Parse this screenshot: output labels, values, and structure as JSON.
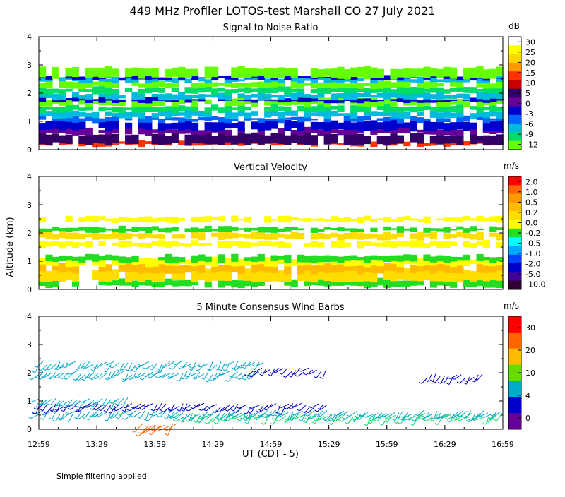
{
  "figure": {
    "title": "449 MHz Profiler LOTOS-test Marshall CO 27 July 2021",
    "ylabel": "Altitude (km)",
    "xlabel": "UT  (CDT - 5)",
    "footnote": "Simple filtering applied",
    "xticks": [
      "12:59",
      "13:29",
      "13:59",
      "14:29",
      "14:59",
      "15:29",
      "15:59",
      "16:29",
      "16:59"
    ]
  },
  "chart_data": [
    {
      "type": "heatmap",
      "title": "Signal to Noise Ratio",
      "unit": "dB",
      "xlim": [
        "12:59",
        "16:59"
      ],
      "ylim": [
        0,
        4
      ],
      "yticks": [
        "0",
        "1",
        "2",
        "3",
        "4"
      ],
      "colorbar": {
        "labels": [
          "30",
          "25",
          "20",
          "15",
          "10",
          "5",
          "0",
          "-3",
          "-6",
          "-9",
          "-12"
        ],
        "colors": [
          "#ffffff",
          "#ffff00",
          "#ffd700",
          "#ff9900",
          "#ff3300",
          "#c80000",
          "#330066",
          "#660099",
          "#0000cc",
          "#0066ff",
          "#00bbdd",
          "#00dd66",
          "#66ff00"
        ]
      },
      "bands": [
        {
          "y0": 0.15,
          "y1": 0.3,
          "color": "#ff3300"
        },
        {
          "y0": 0.2,
          "y1": 0.55,
          "color": "#330066"
        },
        {
          "y0": 0.55,
          "y1": 0.75,
          "color": "#660099"
        },
        {
          "y0": 0.7,
          "y1": 1.0,
          "color": "#0000cc"
        },
        {
          "y0": 1.0,
          "y1": 1.15,
          "color": "#0066ff"
        },
        {
          "y0": 1.15,
          "y1": 1.35,
          "color": "#00bbdd"
        },
        {
          "y0": 1.35,
          "y1": 1.55,
          "color": "#00dd66"
        },
        {
          "y0": 1.55,
          "y1": 1.8,
          "color": "#66ff00"
        },
        {
          "y0": 1.7,
          "y1": 1.8,
          "color": "#0000cc"
        },
        {
          "y0": 1.8,
          "y1": 2.0,
          "color": "#00bbdd"
        },
        {
          "y0": 2.0,
          "y1": 2.2,
          "color": "#00dd66"
        },
        {
          "y0": 2.2,
          "y1": 2.4,
          "color": "#66ff00"
        },
        {
          "y0": 2.4,
          "y1": 2.55,
          "color": "#00bbdd"
        },
        {
          "y0": 2.5,
          "y1": 2.6,
          "color": "#0000cc"
        },
        {
          "y0": 2.55,
          "y1": 2.9,
          "color": "#66ff00"
        }
      ]
    },
    {
      "type": "heatmap",
      "title": "Vertical Velocity",
      "unit": "m/s",
      "xlim": [
        "12:59",
        "16:59"
      ],
      "ylim": [
        0,
        4
      ],
      "yticks": [
        "0",
        "1",
        "2",
        "3",
        "4"
      ],
      "colorbar": {
        "labels": [
          "2.0",
          "1.0",
          "0.5",
          "0.2",
          "0.0",
          "-0.2",
          "-0.5",
          "-1.0",
          "-2.0",
          "-5.0",
          "-10.0"
        ],
        "colors": [
          "#ff0000",
          "#ff6600",
          "#ff9900",
          "#ffbb00",
          "#ffdd00",
          "#ffff00",
          "#22dd22",
          "#00ffff",
          "#00aaff",
          "#0044ff",
          "#0000cc",
          "#440099",
          "#330033"
        ]
      },
      "bands": [
        {
          "y0": 0.1,
          "y1": 0.35,
          "color": "#22dd22"
        },
        {
          "y0": 0.3,
          "y1": 0.7,
          "color": "#ffdd00"
        },
        {
          "y0": 0.6,
          "y1": 0.9,
          "color": "#ffbb00"
        },
        {
          "y0": 0.85,
          "y1": 1.1,
          "color": "#ffff00"
        },
        {
          "y0": 1.0,
          "y1": 1.2,
          "color": "#22dd22"
        },
        {
          "y0": 1.5,
          "y1": 1.7,
          "color": "#ffff00"
        },
        {
          "y0": 1.8,
          "y1": 2.0,
          "color": "#ffdd00"
        },
        {
          "y0": 2.05,
          "y1": 2.2,
          "color": "#22dd22"
        },
        {
          "y0": 2.4,
          "y1": 2.55,
          "color": "#ffff00"
        }
      ]
    },
    {
      "type": "scatter",
      "title": "5 Minute Consensus Wind Barbs",
      "unit": "m/s",
      "xlim": [
        "12:59",
        "16:59"
      ],
      "ylim": [
        0,
        4
      ],
      "yticks": [
        "0",
        "1",
        "2",
        "3",
        "4"
      ],
      "colorbar": {
        "labels": [
          "30",
          "20",
          "10",
          "4",
          "0"
        ],
        "colors": [
          "#ff0000",
          "#ff6600",
          "#ffbb00",
          "#66dd00",
          "#00aacc",
          "#0000cc",
          "#660099"
        ]
      },
      "rows": [
        {
          "altitude": 0.15,
          "start": "13:53",
          "end": "14:12",
          "color": "#ff6600",
          "speed": 20
        },
        {
          "altitude": 0.5,
          "start": "14:12",
          "end": "16:59",
          "color": "#00dd66",
          "speed": 8
        },
        {
          "altitude": 0.6,
          "start": "12:59",
          "end": "16:59",
          "color": "#00aacc",
          "speed": 6
        },
        {
          "altitude": 0.85,
          "start": "12:59",
          "end": "15:29",
          "color": "#0000cc",
          "speed": 4
        },
        {
          "altitude": 1.05,
          "start": "12:59",
          "end": "13:47",
          "color": "#00aacc",
          "speed": 6
        },
        {
          "altitude": 2.0,
          "start": "12:59",
          "end": "14:53",
          "color": "#00aacc",
          "speed": 6
        },
        {
          "altitude": 2.1,
          "start": "14:50",
          "end": "15:29",
          "color": "#0000cc",
          "speed": 4
        },
        {
          "altitude": 1.9,
          "start": "16:20",
          "end": "16:50",
          "color": "#0000cc",
          "speed": 4
        },
        {
          "altitude": 2.35,
          "start": "12:59",
          "end": "14:56",
          "color": "#00aacc",
          "speed": 6
        }
      ]
    }
  ]
}
